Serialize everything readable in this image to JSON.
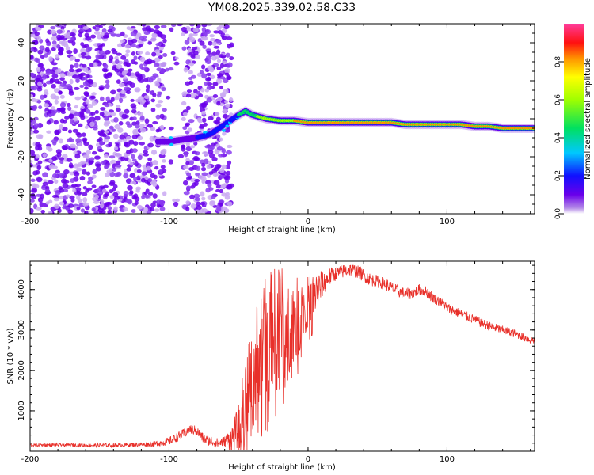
{
  "figure": {
    "title": "YM08.2025.339.02.58.C33"
  },
  "chart_data": [
    {
      "type": "heatmap",
      "title": "YM08.2025.339.02.58.C33",
      "xlabel": "Height of straight line (km)",
      "ylabel": "Frequency (Hz)",
      "xlim": [
        -200,
        163
      ],
      "ylim": [
        -50,
        50
      ],
      "xticks": [
        -200,
        -100,
        0,
        100
      ],
      "yticks": [
        -40,
        -20,
        0,
        20,
        40
      ],
      "xtick_labels": [
        "-200",
        "-100",
        "0",
        "100"
      ],
      "ytick_labels": [
        "-40",
        "-20",
        "0",
        "20",
        "40"
      ],
      "colorbar": {
        "label": "Normalized spectral amplitude",
        "range": [
          0,
          1
        ],
        "ticks": [
          0.0,
          0.2,
          0.4,
          0.6,
          0.8
        ],
        "tick_labels": [
          "0.0",
          "0.2",
          "0.4",
          "0.6",
          "0.8"
        ],
        "colormap": "rainbow (violet to magenta)"
      },
      "ridge": {
        "description": "Main spectral ridge: frequency (Hz) vs height (km) and normalized amplitude",
        "height_km": [
          -108,
          -100,
          -90,
          -80,
          -70,
          -60,
          -50,
          -45,
          -40,
          -30,
          -20,
          -10,
          0,
          10,
          20,
          30,
          40,
          50,
          60,
          70,
          80,
          90,
          100,
          110,
          120,
          130,
          140,
          150,
          160
        ],
        "frequency_hz": [
          -12,
          -12,
          -11,
          -10,
          -8,
          -3,
          2,
          4,
          2,
          0,
          -1,
          -1,
          -2,
          -2,
          -2,
          -2,
          -2,
          -2,
          -2,
          -3,
          -3,
          -3,
          -3,
          -3,
          -4,
          -4,
          -5,
          -5,
          -5
        ],
        "amplitude": [
          0.15,
          0.2,
          0.22,
          0.25,
          0.3,
          0.35,
          0.45,
          0.5,
          0.6,
          0.75,
          0.8,
          0.85,
          0.9,
          0.92,
          0.95,
          0.95,
          0.9,
          0.85,
          0.85,
          0.9,
          0.95,
          0.9,
          0.85,
          0.9,
          0.95,
          0.9,
          0.85,
          0.95,
          0.9
        ]
      },
      "noise": {
        "description": "Scattered low-amplitude noise speckle across all frequencies for heights below about -55 km",
        "height_range_km": [
          -200,
          -55
        ],
        "amplitude_range": [
          0.02,
          0.15
        ]
      }
    },
    {
      "type": "line",
      "xlabel": "Height of straight line (km)",
      "ylabel": "SNR (10 * v/v)",
      "xlim": [
        -200,
        163
      ],
      "ylim": [
        0,
        4700
      ],
      "xticks": [
        -200,
        -100,
        0,
        100
      ],
      "yticks": [
        1000,
        2000,
        3000,
        4000
      ],
      "xtick_labels": [
        "-200",
        "-100",
        "0",
        "100"
      ],
      "ytick_labels": [
        "1000",
        "2000",
        "3000",
        "4000"
      ],
      "series": [
        {
          "name": "SNR",
          "color": "#e8302a",
          "x": [
            -200,
            -180,
            -160,
            -140,
            -120,
            -110,
            -100,
            -90,
            -85,
            -80,
            -75,
            -70,
            -65,
            -60,
            -55,
            -50,
            -45,
            -40,
            -35,
            -30,
            -25,
            -20,
            -15,
            -10,
            -5,
            0,
            5,
            10,
            15,
            20,
            25,
            30,
            35,
            40,
            45,
            50,
            55,
            60,
            65,
            70,
            75,
            80,
            85,
            90,
            95,
            100,
            110,
            120,
            130,
            140,
            150,
            160
          ],
          "values": [
            150,
            160,
            150,
            150,
            170,
            180,
            250,
            420,
            550,
            500,
            300,
            250,
            200,
            250,
            300,
            600,
            1200,
            1900,
            2600,
            2800,
            3100,
            3300,
            3100,
            3300,
            3400,
            3700,
            3900,
            4100,
            4300,
            4400,
            4450,
            4500,
            4450,
            4350,
            4250,
            4200,
            4150,
            4050,
            3950,
            3900,
            3900,
            4000,
            3950,
            3800,
            3700,
            3550,
            3400,
            3250,
            3100,
            3000,
            2900,
            2750
          ],
          "noise": {
            "description": "High-frequency fluctuation around the trend line",
            "band_by_height_km": [
              [
                -200,
                80
              ],
              [
                -120,
                100
              ],
              [
                -90,
                250
              ],
              [
                -60,
                250
              ],
              [
                -45,
                1500
              ],
              [
                -30,
                2200
              ],
              [
                -15,
                1800
              ],
              [
                0,
                900
              ],
              [
                20,
                350
              ],
              [
                60,
                300
              ],
              [
                100,
                250
              ],
              [
                160,
                200
              ]
            ]
          }
        }
      ]
    }
  ]
}
